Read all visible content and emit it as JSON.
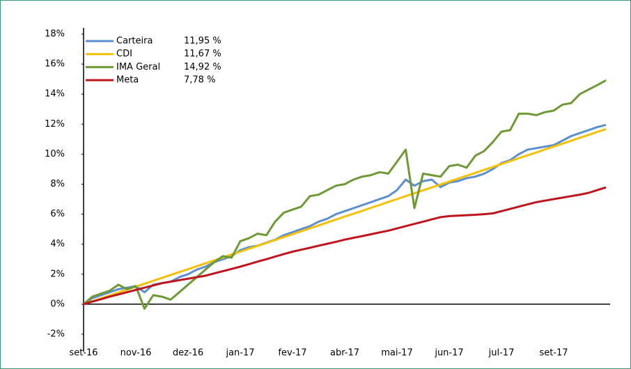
{
  "chart_data": {
    "type": "line",
    "categories": [
      "set-16",
      null,
      null,
      null,
      null,
      null,
      "nov-16",
      null,
      null,
      null,
      null,
      null,
      "dez-16",
      null,
      null,
      null,
      null,
      null,
      "jan-17",
      null,
      null,
      null,
      null,
      null,
      "fev-17",
      null,
      null,
      null,
      null,
      null,
      "abr-17",
      null,
      null,
      null,
      null,
      null,
      "mai-17",
      null,
      null,
      null,
      null,
      null,
      "jun-17",
      null,
      null,
      null,
      null,
      null,
      "jul-17",
      null,
      null,
      null,
      null,
      null,
      "set-17",
      null,
      null,
      null,
      null,
      null,
      null
    ],
    "ylim": [
      -2,
      18
    ],
    "yticks": [
      {
        "value": -2,
        "label": "-2%"
      },
      {
        "value": 0,
        "label": "0%"
      },
      {
        "value": 2,
        "label": "2%"
      },
      {
        "value": 4,
        "label": "4%"
      },
      {
        "value": 6,
        "label": "6%"
      },
      {
        "value": 8,
        "label": "8%"
      },
      {
        "value": 10,
        "label": "10%"
      },
      {
        "value": 12,
        "label": "12%"
      },
      {
        "value": 14,
        "label": "14%"
      },
      {
        "value": 16,
        "label": "16%"
      },
      {
        "value": 18,
        "label": "18%"
      }
    ],
    "series": [
      {
        "name": "Carteira",
        "legend_value": "11,95 %",
        "color": "#5b8fd0",
        "values": [
          0,
          0.4,
          0.6,
          0.8,
          1.0,
          1.1,
          1.2,
          0.8,
          1.3,
          1.4,
          1.5,
          1.8,
          2.0,
          2.3,
          2.5,
          2.8,
          3.0,
          3.2,
          3.6,
          3.8,
          3.9,
          4.1,
          4.3,
          4.6,
          4.8,
          5.0,
          5.2,
          5.5,
          5.7,
          6.0,
          6.2,
          6.4,
          6.6,
          6.8,
          7.0,
          7.2,
          7.6,
          8.3,
          7.9,
          8.2,
          8.3,
          7.8,
          8.1,
          8.2,
          8.4,
          8.5,
          8.7,
          9.0,
          9.4,
          9.6,
          10.0,
          10.3,
          10.4,
          10.5,
          10.6,
          10.9,
          11.2,
          11.4,
          11.6,
          11.8,
          11.95
        ]
      },
      {
        "name": "CDI",
        "legend_value": "11,67 %",
        "color": "#f5c000",
        "values": [
          0,
          0.19,
          0.39,
          0.58,
          0.78,
          0.97,
          1.17,
          1.36,
          1.56,
          1.75,
          1.95,
          2.14,
          2.33,
          2.53,
          2.72,
          2.92,
          3.11,
          3.31,
          3.5,
          3.7,
          3.89,
          4.08,
          4.28,
          4.47,
          4.67,
          4.86,
          5.06,
          5.25,
          5.45,
          5.64,
          5.84,
          6.03,
          6.22,
          6.42,
          6.61,
          6.81,
          7.0,
          7.2,
          7.39,
          7.59,
          7.78,
          7.97,
          8.17,
          8.36,
          8.56,
          8.75,
          8.95,
          9.14,
          9.34,
          9.53,
          9.73,
          9.92,
          10.11,
          10.31,
          10.5,
          10.7,
          10.89,
          11.09,
          11.28,
          11.48,
          11.67
        ]
      },
      {
        "name": "IMA Geral",
        "legend_value": "14,92 %",
        "color": "#6e9a35",
        "values": [
          0,
          0.5,
          0.7,
          0.9,
          1.3,
          1.0,
          1.2,
          -0.3,
          0.6,
          0.5,
          0.3,
          0.8,
          1.3,
          1.8,
          2.3,
          2.8,
          3.2,
          3.1,
          4.2,
          4.4,
          4.7,
          4.6,
          5.5,
          6.1,
          6.3,
          6.5,
          7.2,
          7.3,
          7.6,
          7.9,
          8.0,
          8.3,
          8.5,
          8.6,
          8.8,
          8.7,
          9.5,
          10.3,
          6.4,
          8.7,
          8.6,
          8.5,
          9.2,
          9.3,
          9.1,
          9.9,
          10.2,
          10.8,
          11.5,
          11.6,
          12.7,
          12.7,
          12.6,
          12.8,
          12.9,
          13.3,
          13.4,
          14.0,
          14.3,
          14.6,
          14.92
        ]
      },
      {
        "name": "Meta",
        "legend_value": "7,78 %",
        "color": "#c0141e",
        "values": [
          0,
          0.17,
          0.33,
          0.5,
          0.65,
          0.8,
          0.95,
          1.1,
          1.25,
          1.4,
          1.5,
          1.6,
          1.7,
          1.8,
          1.9,
          2.05,
          2.2,
          2.35,
          2.5,
          2.67,
          2.84,
          3.0,
          3.17,
          3.34,
          3.5,
          3.63,
          3.76,
          3.9,
          4.03,
          4.16,
          4.3,
          4.42,
          4.54,
          4.66,
          4.78,
          4.9,
          5.05,
          5.2,
          5.35,
          5.5,
          5.65,
          5.8,
          5.87,
          5.9,
          5.93,
          5.96,
          6.0,
          6.05,
          6.2,
          6.35,
          6.5,
          6.65,
          6.8,
          6.9,
          7.0,
          7.1,
          7.2,
          7.3,
          7.42,
          7.6,
          7.78
        ]
      }
    ]
  }
}
